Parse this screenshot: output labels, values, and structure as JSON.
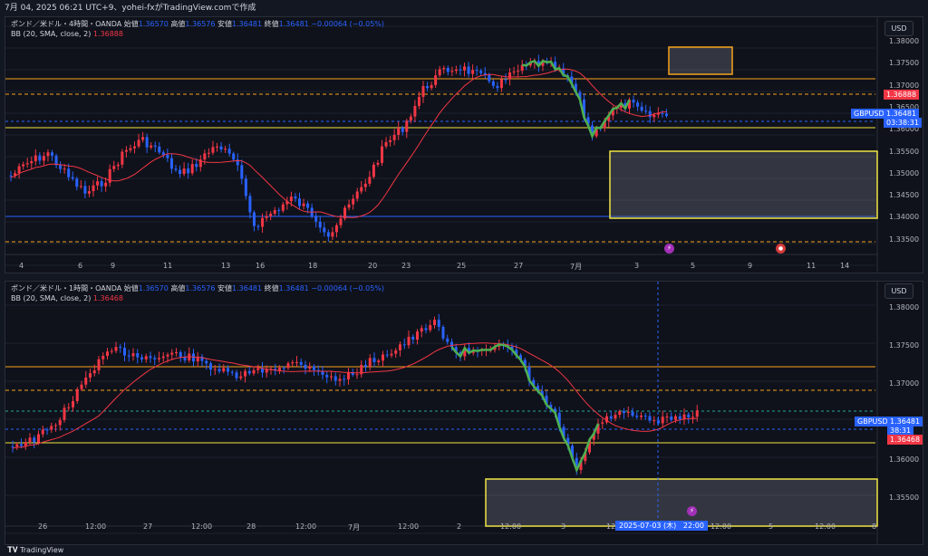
{
  "header": {
    "text": "7月 04, 2025 06:21 UTC+9、yohei-fxがTradingView.comで作成"
  },
  "colors": {
    "bg": "#131722",
    "up": "#f23645",
    "down": "#2962ff",
    "bb": "#f23645",
    "orange": "#f7a21b",
    "yellow": "#f0e442",
    "green": "#4caf50",
    "grid": "#1e222d"
  },
  "chart_top": {
    "legend_title": "ポンド／米ドル・4時間・OANDA",
    "legend_o_label": "始値",
    "legend_o": "1.36570",
    "legend_h_label": "高値",
    "legend_h": "1.36576",
    "legend_l_label": "安値",
    "legend_l": "1.36481",
    "legend_c_label": "終値",
    "legend_c": "1.36481",
    "legend_chg": "−0.00064 (−0.05%)",
    "bb_label": "BB (20, SMA, close, 2)",
    "bb_value": "1.36888",
    "currency": "USD",
    "price_ticks": [
      "1.38000",
      "1.37500",
      "1.37000",
      "1.36500",
      "1.36000",
      "1.35500",
      "1.35000",
      "1.34500",
      "1.34000",
      "1.33500"
    ],
    "bb_tag": "1.36888",
    "symbol_tag": "GBPUSD",
    "symbol_price": "1.36481",
    "countdown": "03:38:31",
    "time_ticks": [
      "4",
      "6",
      "9",
      "11",
      "13",
      "16",
      "18",
      "20",
      "23",
      "25",
      "27",
      "7月",
      "3",
      "5",
      "9",
      "11",
      "14"
    ]
  },
  "chart_bottom": {
    "legend_title": "ポンド／米ドル・1時間・OANDA",
    "legend_o_label": "始値",
    "legend_o": "1.36570",
    "legend_h_label": "高値",
    "legend_h": "1.36576",
    "legend_l_label": "安値",
    "legend_l": "1.36481",
    "legend_c_label": "終値",
    "legend_c": "1.36481",
    "legend_chg": "−0.00064 (−0.05%)",
    "bb_label": "BB (20, SMA, close, 2)",
    "bb_value": "1.36468",
    "currency": "USD",
    "price_ticks": [
      "1.38000",
      "1.37500",
      "1.37000",
      "1.36500",
      "1.36000",
      "1.35500"
    ],
    "symbol_tag": "GBPUSD",
    "symbol_price": "1.36481",
    "countdown": "38:31",
    "bb_tag": "1.36468",
    "time_ticks": [
      "26",
      "12:00",
      "27",
      "12:00",
      "28",
      "12:00",
      "7月",
      "12:00",
      "2",
      "12:00",
      "3",
      "12:",
      "12:00",
      "5",
      "12:00",
      "8"
    ],
    "crosshair_date": "2025-07-03 (木)",
    "crosshair_time": "22:00"
  },
  "footer": {
    "logo": "TradingView"
  }
}
